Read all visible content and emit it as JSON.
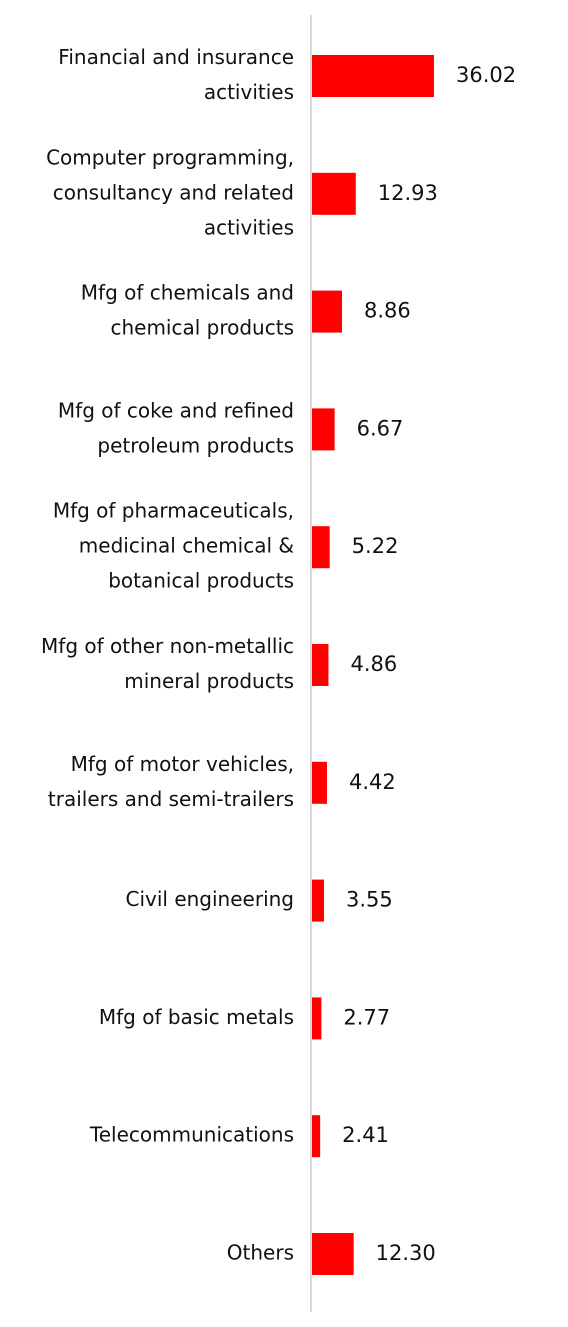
{
  "chart_data": {
    "type": "bar",
    "orientation": "horizontal",
    "categories": [
      [
        "Financial and insurance",
        "activities"
      ],
      [
        "Computer programming,",
        "consultancy and related",
        "activities"
      ],
      [
        "Mfg of chemicals and",
        "chemical products"
      ],
      [
        "Mfg of coke and refined",
        "petroleum products"
      ],
      [
        "Mfg of pharmaceuticals,",
        "medicinal chemical &",
        "botanical products"
      ],
      [
        "Mfg of other non-metallic",
        "mineral products"
      ],
      [
        "Mfg of motor vehicles,",
        "trailers and semi-trailers"
      ],
      [
        "Civil engineering"
      ],
      [
        "Mfg of basic metals"
      ],
      [
        "Telecommunications"
      ],
      [
        "Others"
      ]
    ],
    "values": [
      36.02,
      12.93,
      8.86,
      6.67,
      5.22,
      4.86,
      4.42,
      3.55,
      2.77,
      2.41,
      12.3
    ],
    "value_labels": [
      "36.02",
      "12.93",
      "8.86",
      "6.67",
      "5.22",
      "4.86",
      "4.42",
      "3.55",
      "2.77",
      "2.41",
      "12.30"
    ],
    "bar_color": "#ff0000",
    "axis_color": "#d9d9d9",
    "xlim": [
      0,
      36.02
    ],
    "grid": false,
    "legend": "none"
  }
}
